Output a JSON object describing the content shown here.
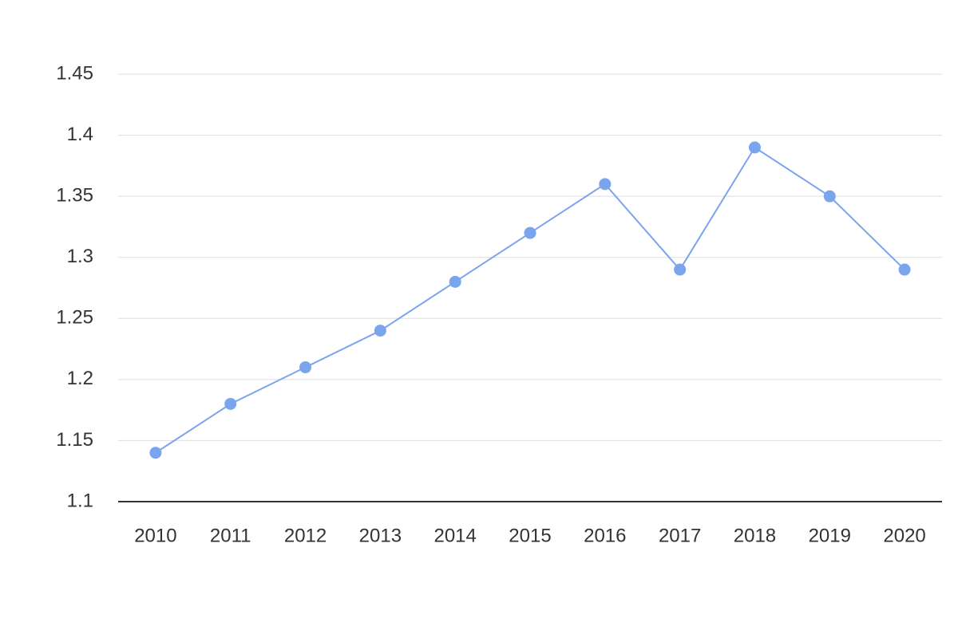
{
  "chart_data": {
    "type": "line",
    "categories": [
      "2010",
      "2011",
      "2012",
      "2013",
      "2014",
      "2015",
      "2016",
      "2017",
      "2018",
      "2019",
      "2020"
    ],
    "values": [
      1.14,
      1.18,
      1.21,
      1.24,
      1.28,
      1.32,
      1.36,
      1.29,
      1.39,
      1.35,
      1.29
    ],
    "color": "#7ba4ef",
    "ylim": [
      1.1,
      1.45
    ],
    "yticks": [
      1.1,
      1.15,
      1.2,
      1.25,
      1.3,
      1.35,
      1.4,
      1.45
    ],
    "grid": true
  }
}
